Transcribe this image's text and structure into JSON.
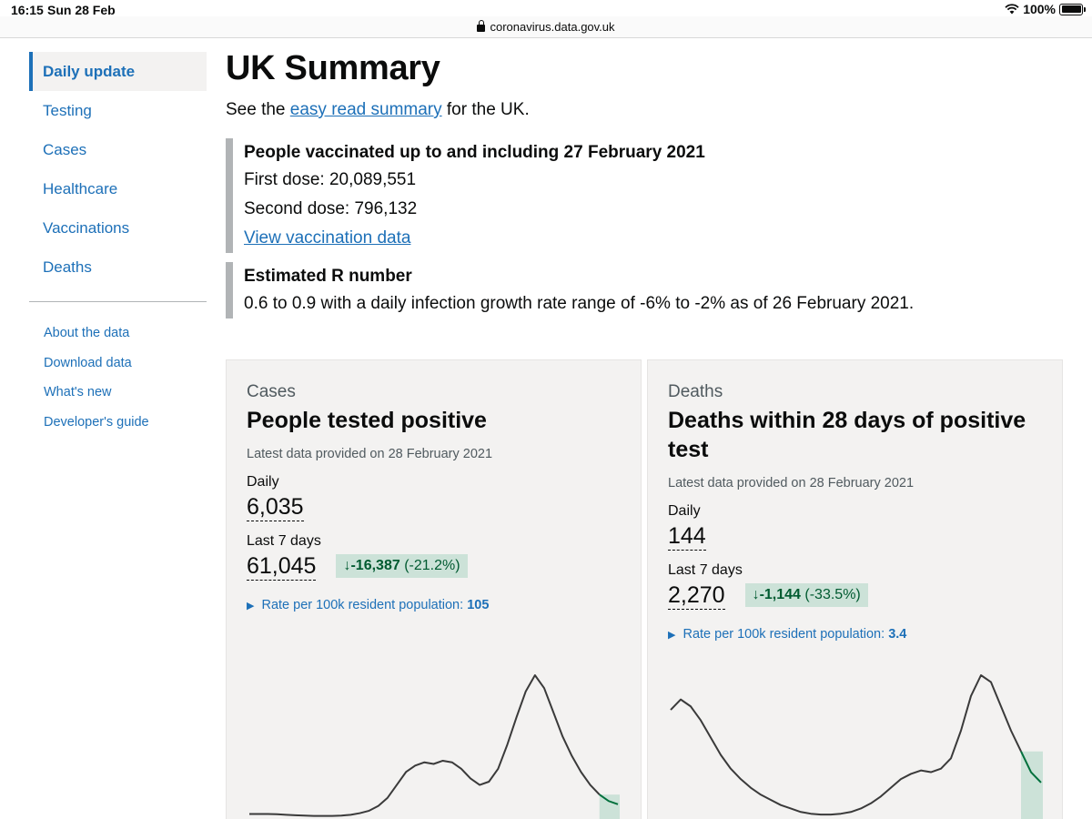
{
  "status": {
    "time": "16:15",
    "date": "Sun 28 Feb",
    "battery": "100%"
  },
  "browser": {
    "url": "coronavirus.data.gov.uk"
  },
  "sidebar": {
    "items": [
      {
        "label": "Daily update"
      },
      {
        "label": "Testing"
      },
      {
        "label": "Cases"
      },
      {
        "label": "Healthcare"
      },
      {
        "label": "Vaccinations"
      },
      {
        "label": "Deaths"
      }
    ],
    "links": [
      {
        "label": "About the data"
      },
      {
        "label": "Download data"
      },
      {
        "label": "What's new"
      },
      {
        "label": "Developer's guide"
      }
    ]
  },
  "main": {
    "title": "UK Summary",
    "intro_before": "See the ",
    "intro_link": "easy read summary",
    "intro_after": " for the UK.",
    "vaccination": {
      "heading": "People vaccinated up to and including 27 February 2021",
      "first_dose": "First dose: 20,089,551",
      "second_dose": "Second dose: 796,132",
      "link": "View vaccination data"
    },
    "r_number": {
      "heading": "Estimated R number",
      "text": "0.6 to 0.9 with a daily infection growth rate range of -6% to -2% as of 26 February 2021."
    }
  },
  "cards": [
    {
      "caption": "Cases",
      "title": "People tested positive",
      "latest": "Latest data provided on 28 February 2021",
      "daily_label": "Daily",
      "daily_value": "6,035",
      "week_label": "Last 7 days",
      "week_value": "61,045",
      "change_arrow": "↓",
      "change_value": "-16,387",
      "change_pct": "(-21.2%)",
      "rate_label": "Rate per 100k resident population:",
      "rate_value": "105",
      "sparkline": [
        2,
        2,
        2,
        1.8,
        1.5,
        1.2,
        1,
        0.8,
        0.8,
        0.8,
        1,
        1.5,
        2.5,
        4,
        7,
        12,
        20,
        28,
        32,
        34,
        33,
        35,
        34,
        30,
        24,
        20,
        22,
        30,
        45,
        62,
        78,
        88,
        80,
        65,
        50,
        38,
        28,
        20,
        14,
        10,
        8
      ],
      "sparkline_color": "#3a3a3a",
      "highlight_color": "#00703c"
    },
    {
      "caption": "Deaths",
      "title": "Deaths within 28 days of positive test",
      "latest": "Latest data provided on 28 February 2021",
      "daily_label": "Daily",
      "daily_value": "144",
      "week_label": "Last 7 days",
      "week_value": "2,270",
      "change_arrow": "↓",
      "change_value": "-1,144",
      "change_pct": "(-33.5%)",
      "rate_label": "Rate per 100k resident population:",
      "rate_value": "3.4",
      "sparkline": [
        62,
        68,
        64,
        56,
        46,
        36,
        28,
        22,
        17,
        13,
        10,
        7,
        5,
        3,
        2,
        1.5,
        1.5,
        2,
        3,
        5,
        8,
        12,
        17,
        22,
        25,
        27,
        26,
        28,
        34,
        50,
        70,
        82,
        78,
        64,
        50,
        38,
        26,
        20
      ],
      "sparkline_color": "#3a3a3a",
      "highlight_color": "#00703c"
    }
  ]
}
